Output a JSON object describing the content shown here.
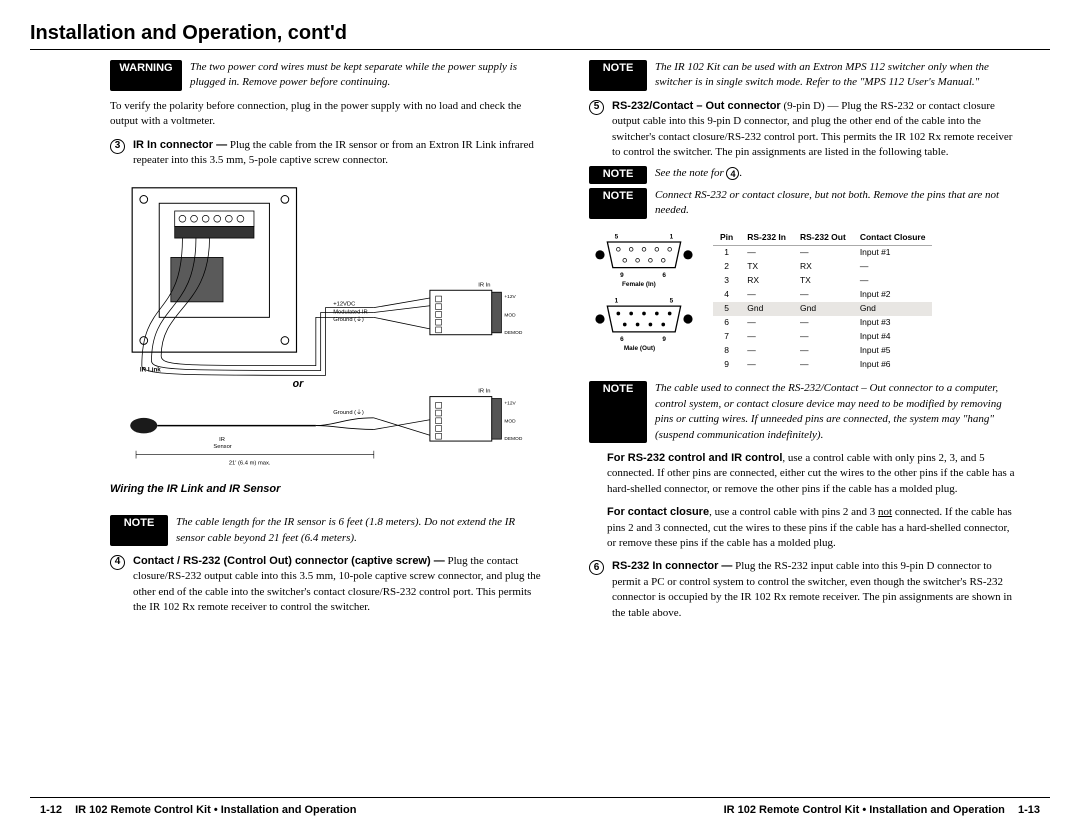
{
  "header": {
    "title": "Installation and Operation, cont'd"
  },
  "left": {
    "warning_label": "WARNING",
    "warning_text": "The two power cord wires must be kept separate while the power supply is plugged in.  Remove power before continuing.",
    "verify_text": "To verify the polarity before connection, plug in the power supply with no load and check the output with a voltmeter.",
    "item3_num": "3",
    "item3_lead": "IR In connector —",
    "item3_text": " Plug the cable from the IR sensor or from an Extron IR Link infrared repeater into this 3.5 mm, 5-pole captive screw connector.",
    "figure": {
      "labels": {
        "ir_link": "IR Link",
        "plus12": "+12VDC",
        "modir": "Modulated IR",
        "ground_sym": "Ground (   )",
        "ir_in_top": "IR In",
        "ir_in_bot": "IR In",
        "mod": "MOD",
        "demod": "DEMOD",
        "plus12_term": "+12V",
        "gnd_term": "",
        "or": "or",
        "ground2": "Ground (   )",
        "ir_sensor": "IR\nSensor",
        "max_len": "21' (6.4 m) max."
      },
      "caption": "Wiring the IR Link and IR Sensor"
    },
    "note_label": "NOTE",
    "note_text": "The cable length for the IR sensor is 6 feet (1.8 meters).  Do not extend the IR sensor cable beyond 21 feet (6.4 meters).",
    "item4_num": "4",
    "item4_lead": "Contact / RS-232 (Control Out) connector (captive screw) —",
    "item4_text": " Plug the contact closure/RS-232 output cable into this 3.5 mm, 10-pole captive screw connector, and plug the other end of the cable into the switcher's contact closure/RS-232 control port.  This permits the IR 102 Rx remote receiver to control the switcher."
  },
  "right": {
    "note1_label": "NOTE",
    "note1_text": "The IR 102 Kit can be used with an Extron MPS 112 switcher only when the switcher is in single switch mode.  Refer to the \"MPS 112 User's Manual.\"",
    "item5_num": "5",
    "item5_lead": "RS-232/Contact – Out connector",
    "item5_mid": " (9-pin D) — ",
    "item5_text": "Plug the RS-232 or contact closure output cable into this 9-pin D connector, and plug the other end of the cable into the switcher's contact closure/RS-232 control port.  This permits the IR 102 Rx remote receiver to control the switcher.  The pin assignments are listed in the following table.",
    "note2_label": "NOTE",
    "note2_text": "See the note for ",
    "note2_num": "4",
    "note3_label": "NOTE",
    "note3_text": "Connect RS-232 or contact closure, but not both.  Remove the pins that are not needed.",
    "db9": {
      "top": {
        "nums": [
          "5",
          "1",
          "9",
          "6"
        ],
        "label": "Female (In)"
      },
      "bottom": {
        "nums": [
          "1",
          "5",
          "6",
          "9"
        ],
        "label": "Male (Out)"
      }
    },
    "table": {
      "headers": [
        "Pin",
        "RS-232 In",
        "RS-232 Out",
        "Contact Closure"
      ],
      "rows": [
        [
          "1",
          "—",
          "—",
          "Input #1"
        ],
        [
          "2",
          "TX",
          "RX",
          "—"
        ],
        [
          "3",
          "RX",
          "TX",
          "—"
        ],
        [
          "4",
          "—",
          "—",
          "Input #2"
        ],
        [
          "5",
          "Gnd",
          "Gnd",
          "Gnd"
        ],
        [
          "6",
          "—",
          "—",
          "Input #3"
        ],
        [
          "7",
          "—",
          "—",
          "Input #4"
        ],
        [
          "8",
          "—",
          "—",
          "Input #5"
        ],
        [
          "9",
          "—",
          "—",
          "Input #6"
        ]
      ],
      "shaded_rows": [
        4
      ]
    },
    "note4_label": "NOTE",
    "note4_text": "The cable used to connect the RS-232/Contact – Out connector to a computer, control system, or contact closure device may need to be modified by removing pins or cutting wires.  If unneeded pins are connected, the system may \"hang\" (suspend communication indefinitely).",
    "para_rs232_lead": "For RS-232 control and IR control",
    "para_rs232_text": ", use a control cable with only pins 2, 3, and 5 connected.  If other pins are connected, either cut the wires to the other pins if the cable has a hard-shelled connector, or remove the other pins if the cable has a molded plug.",
    "para_cc_lead": "For contact closure",
    "para_cc_text": ", use a control cable with pins 2 and 3 not connected.  If the cable has pins 2 and 3 connected, cut the wires to these pins if the cable has a hard-shelled connector, or remove these pins if the cable has a molded plug.",
    "item6_num": "6",
    "item6_lead": "RS-232 In connector —",
    "item6_text": " Plug the RS-232 input cable into this 9-pin D connector to permit a PC or control system to control the switcher, even though the switcher's RS-232 connector is occupied by the IR 102 Rx remote receiver.  The pin assignments are shown in the table above."
  },
  "footer": {
    "left_page": "1-12",
    "right_page": "1-13",
    "doc_title": "IR 102 Remote Control Kit • Installation and Operation"
  }
}
